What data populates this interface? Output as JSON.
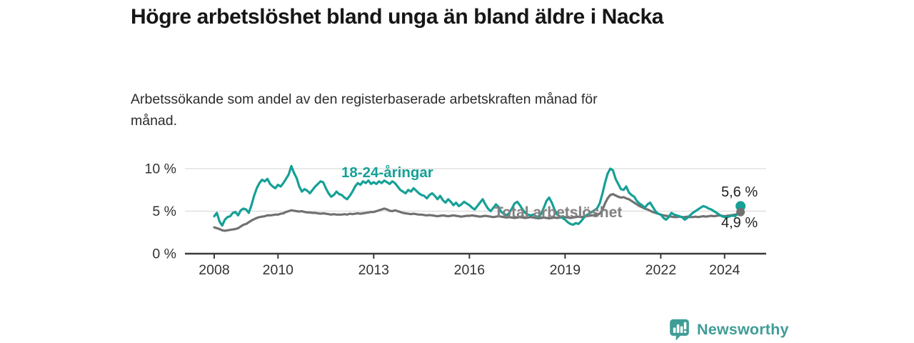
{
  "header": {
    "title": "Högre arbetslöshet bland unga än bland äldre i Nacka",
    "subtitle_line1": "Arbetssökande som andel av den registerbaserade arbetskraften månad för",
    "subtitle_line2": "månad."
  },
  "footer": {
    "brand": "Newsworthy"
  },
  "colors": {
    "young_line": "#16a096",
    "total_line": "#717171",
    "total_label": "#818181",
    "end_label": "#222222",
    "axis": "#3a3a3a",
    "grid": "#dcdcdc",
    "tick_text": "#333333",
    "brand": "#3f9d96"
  },
  "chart_data": {
    "type": "line",
    "title": "Högre arbetslöshet bland unga än bland äldre i Nacka",
    "subtitle": "Arbetssökande som andel av den registerbaserade arbetskraften månad för månad.",
    "x_start_year": 2008,
    "x_interval": "monthly",
    "xlim": [
      2007.1,
      2025.4
    ],
    "ylim": [
      0,
      10.8
    ],
    "grid": "horizontal",
    "yticks": [
      {
        "value": 0,
        "label": "0 %"
      },
      {
        "value": 5,
        "label": "5 %"
      },
      {
        "value": 10,
        "label": "10 %"
      }
    ],
    "xticks": [
      2008,
      2010,
      2013,
      2016,
      2019,
      2022,
      2024
    ],
    "series": [
      {
        "name": "18-24-åringar",
        "color": "#16a096",
        "end_label": "5,6 %",
        "end_value": 5.6,
        "values": [
          4.4,
          4.8,
          3.8,
          3.3,
          4.0,
          4.3,
          4.4,
          4.8,
          4.9,
          4.5,
          5.1,
          5.3,
          5.2,
          4.8,
          5.7,
          6.8,
          7.7,
          8.3,
          8.7,
          8.5,
          8.8,
          8.2,
          7.9,
          7.7,
          8.1,
          7.9,
          8.3,
          8.8,
          9.3,
          10.3,
          9.5,
          8.9,
          7.9,
          7.3,
          7.6,
          7.4,
          7.1,
          7.5,
          7.9,
          8.2,
          8.5,
          8.4,
          7.7,
          7.1,
          6.7,
          6.9,
          7.3,
          7.0,
          6.9,
          6.6,
          6.4,
          6.8,
          7.3,
          7.9,
          8.3,
          8.1,
          8.5,
          8.3,
          8.6,
          8.2,
          8.4,
          8.2,
          8.5,
          8.3,
          8.6,
          8.4,
          8.2,
          8.5,
          8.3,
          7.9,
          7.5,
          7.3,
          7.1,
          7.5,
          7.3,
          7.7,
          7.4,
          7.1,
          6.9,
          6.8,
          6.5,
          6.9,
          7.1,
          6.8,
          6.4,
          6.8,
          6.3,
          6.0,
          6.4,
          6.1,
          5.7,
          6.0,
          5.6,
          5.8,
          6.1,
          5.9,
          5.7,
          5.4,
          5.2,
          5.6,
          6.0,
          6.4,
          5.8,
          5.3,
          5.0,
          5.4,
          5.8,
          5.5,
          4.9,
          4.7,
          4.5,
          4.8,
          5.3,
          5.9,
          6.1,
          5.7,
          5.2,
          4.8,
          4.6,
          4.5,
          4.6,
          4.4,
          4.3,
          4.7,
          5.4,
          6.2,
          6.6,
          6.0,
          5.2,
          4.6,
          4.4,
          4.2,
          4.0,
          3.7,
          3.5,
          3.4,
          3.6,
          3.5,
          3.8,
          4.2,
          4.5,
          4.7,
          4.9,
          5.1,
          5.3,
          5.9,
          7.0,
          8.3,
          9.4,
          10.0,
          9.8,
          8.8,
          8.2,
          7.6,
          7.5,
          7.9,
          7.2,
          6.9,
          6.7,
          6.2,
          5.9,
          5.7,
          5.4,
          5.8,
          6.0,
          5.5,
          5.0,
          4.7,
          4.6,
          4.2,
          4.0,
          4.3,
          4.8,
          4.6,
          4.5,
          4.4,
          4.3,
          4.0,
          4.2,
          4.5,
          4.8,
          5.0,
          5.2,
          5.4,
          5.6,
          5.5,
          5.3,
          5.2,
          5.0,
          4.8,
          4.6,
          4.4,
          4.3,
          4.3,
          4.4,
          4.5,
          4.4,
          4.7,
          5.6
        ]
      },
      {
        "name": "Total arbetslöshet",
        "color": "#717171",
        "end_label": "4,9 %",
        "end_value": 4.9,
        "values": [
          3.1,
          3.0,
          2.9,
          2.75,
          2.7,
          2.75,
          2.8,
          2.85,
          2.9,
          3.0,
          3.2,
          3.4,
          3.5,
          3.7,
          3.9,
          4.05,
          4.2,
          4.3,
          4.35,
          4.4,
          4.5,
          4.5,
          4.55,
          4.6,
          4.6,
          4.7,
          4.75,
          4.9,
          5.0,
          5.1,
          5.05,
          5.0,
          4.95,
          5.0,
          4.9,
          4.85,
          4.85,
          4.8,
          4.8,
          4.75,
          4.7,
          4.75,
          4.7,
          4.65,
          4.6,
          4.65,
          4.6,
          4.6,
          4.6,
          4.65,
          4.6,
          4.7,
          4.65,
          4.7,
          4.75,
          4.7,
          4.75,
          4.8,
          4.85,
          4.9,
          4.9,
          5.0,
          5.1,
          5.2,
          5.3,
          5.2,
          5.05,
          5.0,
          5.1,
          5.0,
          4.9,
          4.8,
          4.75,
          4.7,
          4.65,
          4.7,
          4.65,
          4.6,
          4.6,
          4.55,
          4.5,
          4.55,
          4.5,
          4.45,
          4.4,
          4.45,
          4.5,
          4.45,
          4.4,
          4.45,
          4.5,
          4.45,
          4.4,
          4.35,
          4.4,
          4.45,
          4.45,
          4.5,
          4.45,
          4.4,
          4.35,
          4.4,
          4.45,
          4.4,
          4.35,
          4.3,
          4.35,
          4.4,
          4.35,
          4.3,
          4.25,
          4.3,
          4.25,
          4.2,
          4.25,
          4.3,
          4.25,
          4.2,
          4.25,
          4.3,
          4.25,
          4.2,
          4.15,
          4.2,
          4.25,
          4.2,
          4.15,
          4.2,
          4.25,
          4.2,
          4.25,
          4.3,
          4.3,
          4.25,
          4.2,
          4.25,
          4.3,
          4.35,
          4.3,
          4.35,
          4.4,
          4.45,
          4.5,
          4.55,
          4.6,
          4.7,
          5.1,
          5.9,
          6.5,
          6.9,
          7.0,
          6.85,
          6.7,
          6.6,
          6.65,
          6.5,
          6.4,
          6.2,
          6.0,
          5.8,
          5.6,
          5.45,
          5.3,
          5.2,
          5.05,
          4.9,
          4.8,
          4.7,
          4.6,
          4.5,
          4.45,
          4.4,
          4.35,
          4.3,
          4.3,
          4.35,
          4.3,
          4.3,
          4.35,
          4.3,
          4.3,
          4.35,
          4.3,
          4.35,
          4.4,
          4.35,
          4.4,
          4.45,
          4.4,
          4.45,
          4.5,
          4.45,
          4.4,
          4.45,
          4.5,
          4.55,
          4.6,
          4.7,
          4.9
        ]
      }
    ]
  }
}
